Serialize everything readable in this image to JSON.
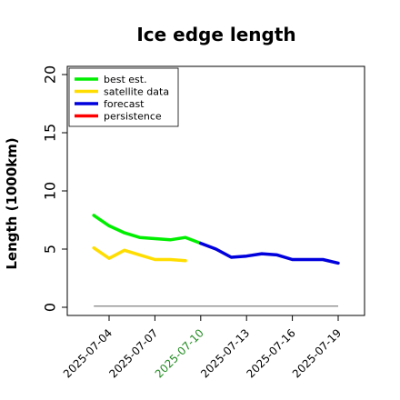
{
  "chart_data": {
    "type": "line",
    "title": "Ice edge length",
    "xlabel": "",
    "ylabel": "Length (1000km)",
    "ylim": [
      0,
      20
    ],
    "yticks": [
      "0",
      "5",
      "10",
      "15",
      "20"
    ],
    "xlim": [
      "2025-07-02",
      "2025-07-20"
    ],
    "xticks": [
      "2025-07-04",
      "2025-07-07",
      "2025-07-10",
      "2025-07-13",
      "2025-07-16",
      "2025-07-19"
    ],
    "highlight_xtick": "2025-07-10",
    "highlight_color": "#228b22",
    "grid": false,
    "legend_position": "top-left",
    "series": [
      {
        "name": "best est.",
        "color": "#00ee00",
        "x": [
          "2025-07-03",
          "2025-07-04",
          "2025-07-05",
          "2025-07-06",
          "2025-07-07",
          "2025-07-08",
          "2025-07-09",
          "2025-07-10"
        ],
        "y": [
          7.9,
          7.0,
          6.4,
          6.0,
          5.9,
          5.8,
          6.0,
          5.5
        ]
      },
      {
        "name": "satellite data",
        "color": "#ffdd00",
        "x": [
          "2025-07-03",
          "2025-07-04",
          "2025-07-05",
          "2025-07-06",
          "2025-07-07",
          "2025-07-08",
          "2025-07-09"
        ],
        "y": [
          5.1,
          4.2,
          4.9,
          4.5,
          4.1,
          4.1,
          4.0
        ]
      },
      {
        "name": "forecast",
        "color": "#0000dd",
        "x": [
          "2025-07-10",
          "2025-07-11",
          "2025-07-12",
          "2025-07-13",
          "2025-07-14",
          "2025-07-15",
          "2025-07-16",
          "2025-07-17",
          "2025-07-18",
          "2025-07-19"
        ],
        "y": [
          5.5,
          5.0,
          4.3,
          4.4,
          4.6,
          4.5,
          4.1,
          4.1,
          4.1,
          3.8
        ]
      },
      {
        "name": "persistence",
        "color": "#ff0000",
        "x": [],
        "y": []
      }
    ],
    "baseline": {
      "color": "#808080",
      "x": [
        "2025-07-03",
        "2025-07-19"
      ],
      "y": [
        0.1,
        0.1
      ]
    }
  }
}
